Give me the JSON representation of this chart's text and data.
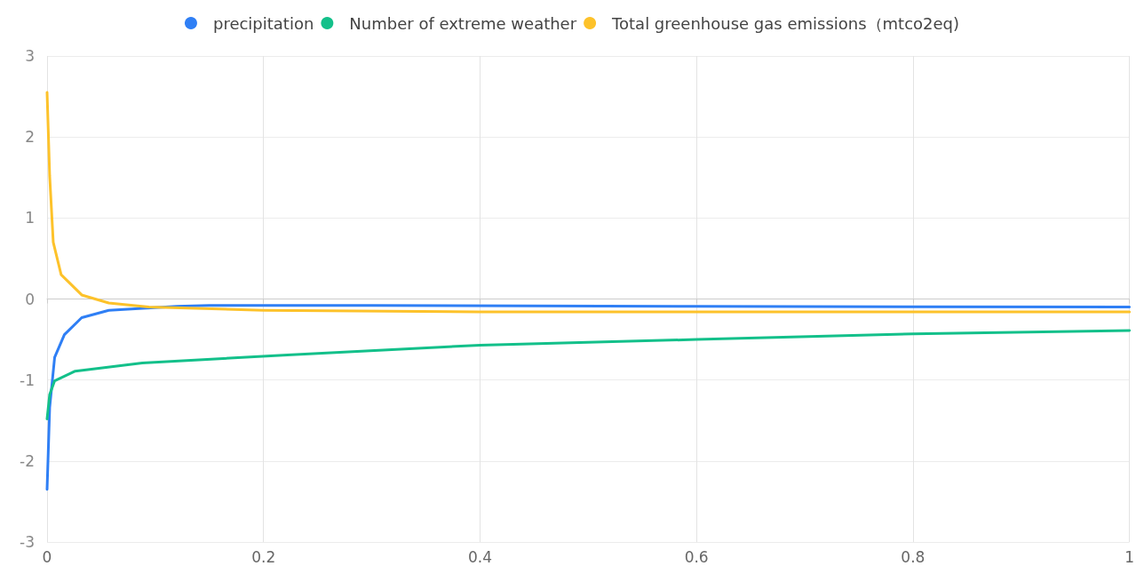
{
  "chart_data": {
    "type": "line",
    "xlim": [
      0,
      1
    ],
    "xticks": [
      0,
      0.2,
      0.4,
      0.6,
      0.8,
      1
    ],
    "ylim": [
      -3,
      3
    ],
    "yticks": [
      -3,
      -2,
      -1,
      0,
      1,
      2,
      3
    ],
    "grid": true,
    "legend": "top",
    "line_style": "solid",
    "series": [
      {
        "name": "precipitation",
        "color": "#2f7ff5",
        "x": [
          0,
          0.0024,
          0.007,
          0.016,
          0.032,
          0.057,
          0.12,
          0.15,
          0.3,
          0.6,
          1
        ],
        "values": [
          -2.35,
          -1.34,
          -0.72,
          -0.44,
          -0.23,
          -0.14,
          -0.09,
          -0.08,
          -0.08,
          -0.09,
          -0.1
        ]
      },
      {
        "name": "Number of extreme weather",
        "color": "#13c08a",
        "x": [
          0,
          0.0024,
          0.007,
          0.026,
          0.088,
          0.222,
          0.4,
          0.6,
          0.8,
          1
        ],
        "values": [
          -1.48,
          -1.18,
          -1.01,
          -0.89,
          -0.79,
          -0.69,
          -0.57,
          -0.5,
          -0.43,
          -0.39
        ]
      },
      {
        "name": "Total greenhouse gas emissions（mtco2eq)",
        "color": "#fdc22a",
        "x": [
          0,
          0.0024,
          0.0057,
          0.013,
          0.032,
          0.057,
          0.094,
          0.2,
          0.4,
          1
        ],
        "values": [
          2.55,
          1.52,
          0.7,
          0.3,
          0.05,
          -0.05,
          -0.1,
          -0.14,
          -0.16,
          -0.16
        ]
      }
    ]
  }
}
